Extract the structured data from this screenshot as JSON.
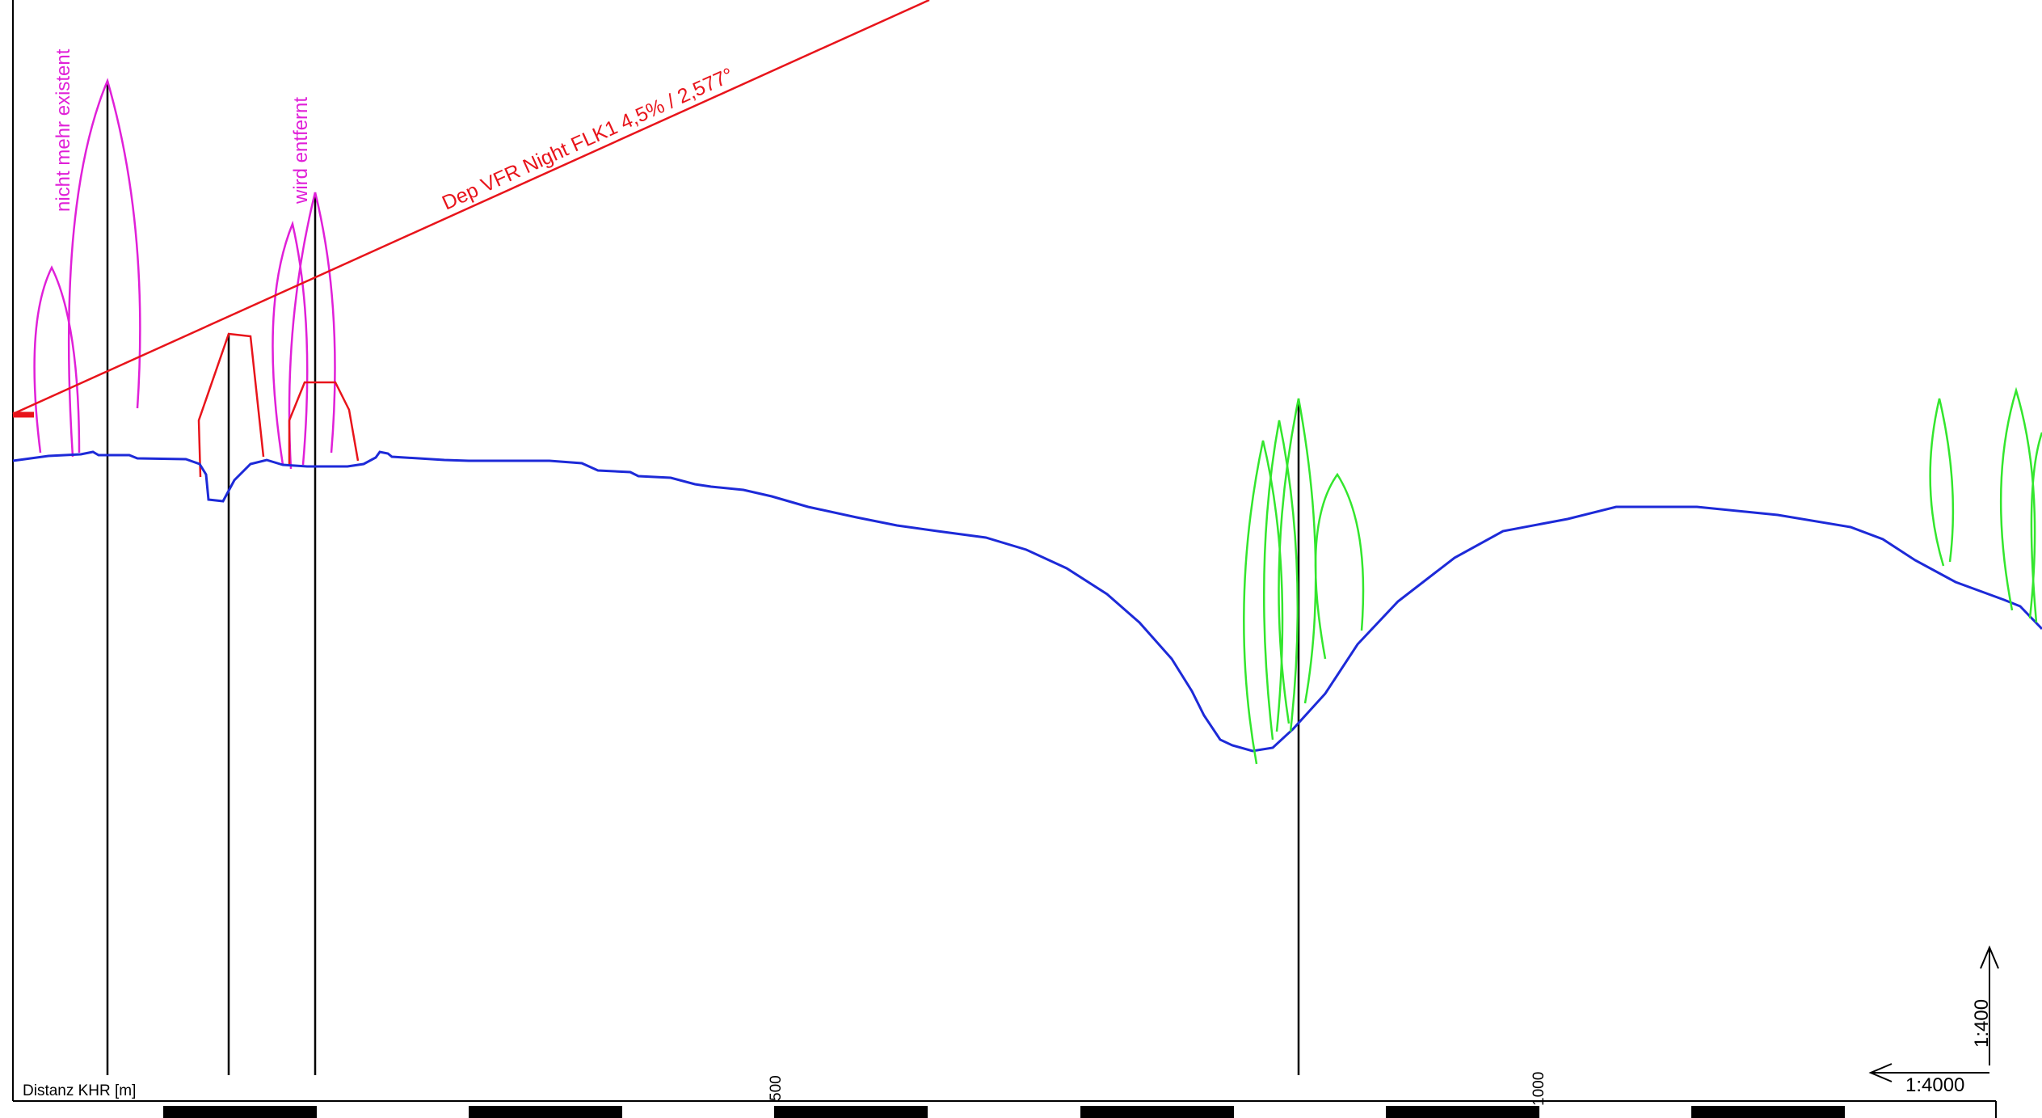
{
  "approach_line": {
    "label": "Dep VFR Night FLK1 4,5% / 2,577°",
    "color": "#e8141b"
  },
  "annotations": {
    "nicht_mehr_existent": "nicht mehr existent",
    "wird_entfernt": "wird entfernt",
    "color": "#e020d8"
  },
  "axis": {
    "label": "Distanz KHR [m]",
    "tick_500": "500",
    "tick_1000": "1000"
  },
  "scales": {
    "vertical": "1:400",
    "horizontal": "1:4000"
  },
  "colors": {
    "terrain": "#1d2ad8",
    "tree_removed": "#e020d8",
    "tree_existing": "#33e62d",
    "building": "#e8141b",
    "pole": "#000000"
  }
}
